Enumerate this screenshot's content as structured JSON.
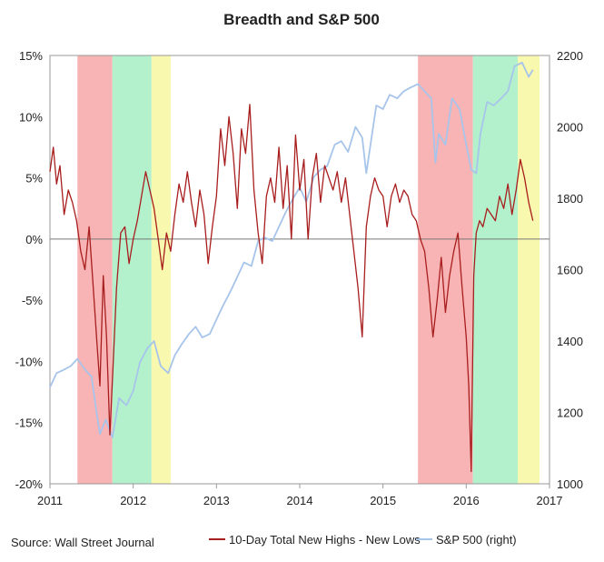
{
  "chart_data": {
    "type": "line",
    "title": "Breadth and S&P 500",
    "source": "Source: Wall Street Journal",
    "x_ticks": [
      "2011",
      "2012",
      "2013",
      "2014",
      "2015",
      "2016",
      "2017"
    ],
    "y_left": {
      "ticks": [
        "15%",
        "10%",
        "5%",
        "0%",
        "-5%",
        "-10%",
        "-15%",
        "-20%"
      ],
      "range": [
        -20,
        15
      ]
    },
    "y_right": {
      "ticks": [
        "2200",
        "2000",
        "1800",
        "1600",
        "1400",
        "1200",
        "1000"
      ],
      "range": [
        1000,
        2200
      ]
    },
    "x_range": [
      2011.0,
      2017.0
    ],
    "grid": false,
    "legend_position": "bottom",
    "shaded_regions": [
      {
        "start": 2011.33,
        "end": 2011.75,
        "color": "#f7a7a7"
      },
      {
        "start": 2011.75,
        "end": 2012.22,
        "color": "#a6eec4"
      },
      {
        "start": 2012.22,
        "end": 2012.45,
        "color": "#f7f7a0"
      },
      {
        "start": 2015.42,
        "end": 2016.08,
        "color": "#f7a7a7"
      },
      {
        "start": 2016.08,
        "end": 2016.62,
        "color": "#a6eec4"
      },
      {
        "start": 2016.62,
        "end": 2016.88,
        "color": "#f7f7a0"
      }
    ],
    "series": [
      {
        "name": "10-Day Total New Highs - New Lows",
        "axis": "left",
        "color": "#a81d1d",
        "x": [
          2011.0,
          2011.04,
          2011.08,
          2011.12,
          2011.17,
          2011.22,
          2011.27,
          2011.32,
          2011.37,
          2011.42,
          2011.47,
          2011.52,
          2011.56,
          2011.6,
          2011.64,
          2011.68,
          2011.72,
          2011.76,
          2011.8,
          2011.85,
          2011.9,
          2011.95,
          2012.0,
          2012.05,
          2012.1,
          2012.15,
          2012.2,
          2012.25,
          2012.3,
          2012.35,
          2012.4,
          2012.45,
          2012.5,
          2012.55,
          2012.6,
          2012.65,
          2012.7,
          2012.75,
          2012.8,
          2012.85,
          2012.9,
          2012.95,
          2013.0,
          2013.05,
          2013.1,
          2013.15,
          2013.2,
          2013.25,
          2013.3,
          2013.35,
          2013.4,
          2013.45,
          2013.5,
          2013.55,
          2013.6,
          2013.65,
          2013.7,
          2013.75,
          2013.8,
          2013.85,
          2013.9,
          2013.95,
          2014.0,
          2014.05,
          2014.1,
          2014.15,
          2014.2,
          2014.25,
          2014.3,
          2014.35,
          2014.4,
          2014.45,
          2014.5,
          2014.55,
          2014.6,
          2014.65,
          2014.7,
          2014.75,
          2014.8,
          2014.85,
          2014.9,
          2014.95,
          2015.0,
          2015.05,
          2015.1,
          2015.15,
          2015.2,
          2015.25,
          2015.3,
          2015.35,
          2015.4,
          2015.45,
          2015.5,
          2015.55,
          2015.6,
          2015.65,
          2015.7,
          2015.75,
          2015.8,
          2015.85,
          2015.9,
          2015.95,
          2016.0,
          2016.03,
          2016.06,
          2016.09,
          2016.12,
          2016.16,
          2016.2,
          2016.25,
          2016.3,
          2016.35,
          2016.4,
          2016.45,
          2016.5,
          2016.55,
          2016.6,
          2016.65,
          2016.7,
          2016.75,
          2016.8
        ],
        "values": [
          5.5,
          7.5,
          4.5,
          6.0,
          2.0,
          4.0,
          3.0,
          1.5,
          -1.0,
          -2.5,
          1.0,
          -4.0,
          -8.0,
          -12.0,
          -3.0,
          -8.0,
          -16.0,
          -10.0,
          -4.0,
          0.5,
          1.0,
          -2.0,
          0.0,
          1.5,
          3.5,
          5.5,
          4.0,
          2.5,
          0.0,
          -2.5,
          0.5,
          -1.0,
          2.0,
          4.5,
          3.0,
          5.5,
          3.0,
          1.0,
          4.0,
          2.0,
          -2.0,
          1.0,
          3.5,
          9.0,
          6.0,
          10.0,
          7.0,
          2.5,
          9.0,
          7.0,
          11.0,
          4.0,
          0.5,
          -2.0,
          3.5,
          5.0,
          3.0,
          7.5,
          2.5,
          6.0,
          0.0,
          8.5,
          4.0,
          6.5,
          0.0,
          5.0,
          7.0,
          3.0,
          6.0,
          5.0,
          4.0,
          5.5,
          3.0,
          5.0,
          2.0,
          -1.0,
          -4.0,
          -8.0,
          1.0,
          3.5,
          5.0,
          4.0,
          3.5,
          1.0,
          3.5,
          4.5,
          3.0,
          4.0,
          3.5,
          2.0,
          1.5,
          0.0,
          -1.0,
          -4.0,
          -8.0,
          -5.0,
          -1.5,
          -6.0,
          -3.0,
          -1.0,
          0.5,
          -4.0,
          -8.0,
          -12.0,
          -19.0,
          -3.0,
          0.5,
          1.5,
          1.0,
          2.5,
          2.0,
          1.5,
          3.5,
          2.5,
          4.5,
          2.0,
          4.0,
          6.5,
          5.0,
          3.0,
          1.5
        ]
      },
      {
        "name": "S&P 500 (right)",
        "axis": "right",
        "color": "#a7c4ea",
        "x": [
          2011.0,
          2011.08,
          2011.17,
          2011.25,
          2011.33,
          2011.42,
          2011.5,
          2011.56,
          2011.6,
          2011.67,
          2011.75,
          2011.83,
          2011.92,
          2012.0,
          2012.08,
          2012.17,
          2012.25,
          2012.33,
          2012.42,
          2012.5,
          2012.58,
          2012.67,
          2012.75,
          2012.83,
          2012.92,
          2013.0,
          2013.08,
          2013.17,
          2013.25,
          2013.33,
          2013.42,
          2013.5,
          2013.58,
          2013.67,
          2013.75,
          2013.83,
          2013.92,
          2014.0,
          2014.08,
          2014.17,
          2014.25,
          2014.33,
          2014.42,
          2014.5,
          2014.58,
          2014.67,
          2014.75,
          2014.8,
          2014.85,
          2014.92,
          2015.0,
          2015.08,
          2015.17,
          2015.25,
          2015.33,
          2015.42,
          2015.5,
          2015.58,
          2015.63,
          2015.67,
          2015.75,
          2015.83,
          2015.92,
          2016.0,
          2016.06,
          2016.12,
          2016.17,
          2016.25,
          2016.33,
          2016.42,
          2016.5,
          2016.58,
          2016.67,
          2016.75,
          2016.8
        ],
        "values": [
          1270,
          1310,
          1320,
          1330,
          1350,
          1320,
          1300,
          1200,
          1140,
          1180,
          1130,
          1240,
          1220,
          1260,
          1340,
          1380,
          1400,
          1330,
          1310,
          1360,
          1390,
          1420,
          1440,
          1410,
          1420,
          1460,
          1500,
          1540,
          1580,
          1620,
          1610,
          1680,
          1690,
          1680,
          1720,
          1760,
          1800,
          1830,
          1790,
          1860,
          1880,
          1890,
          1950,
          1960,
          1930,
          2000,
          1970,
          1870,
          1950,
          2060,
          2050,
          2090,
          2080,
          2100,
          2110,
          2120,
          2100,
          2080,
          1900,
          1980,
          1950,
          2080,
          2050,
          1950,
          1880,
          1870,
          1980,
          2070,
          2060,
          2080,
          2100,
          2170,
          2180,
          2140,
          2160
        ]
      }
    ]
  }
}
